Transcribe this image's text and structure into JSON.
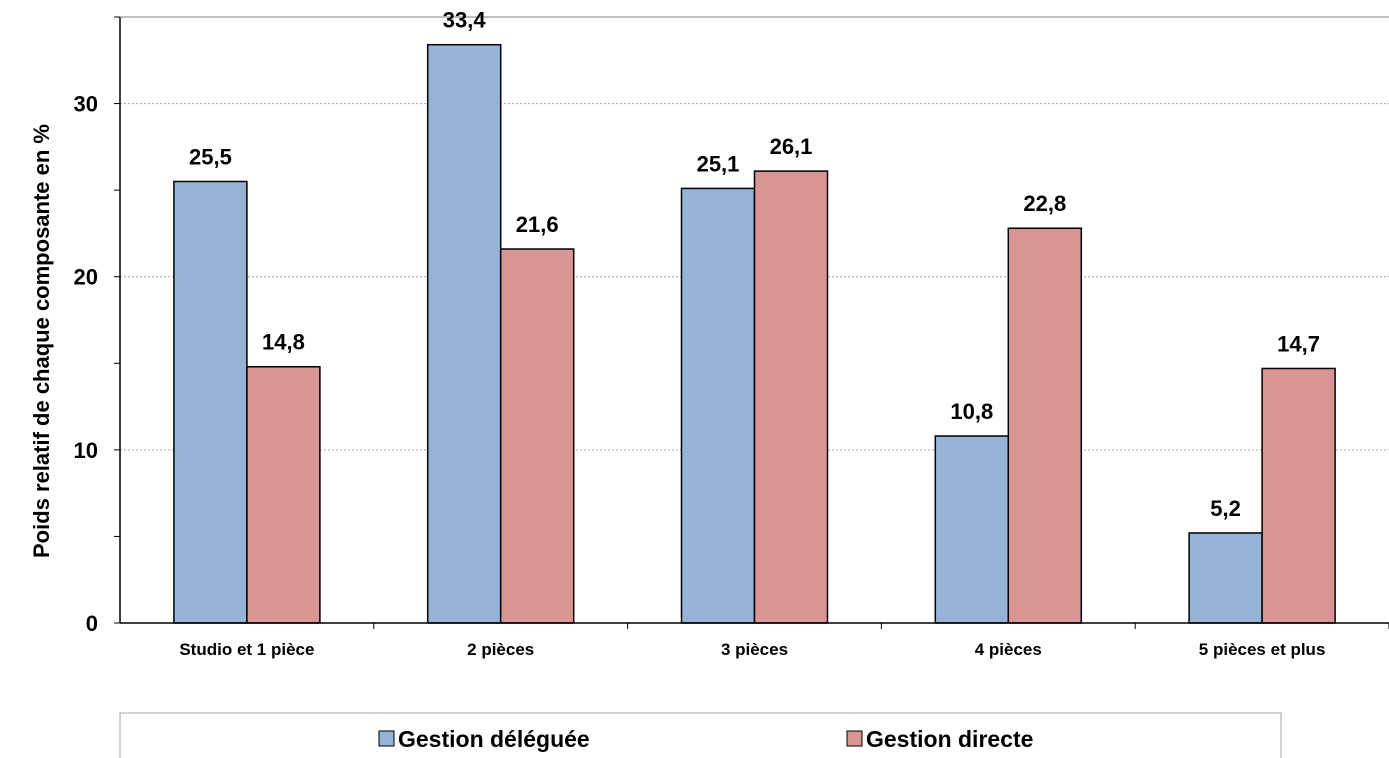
{
  "chart_data": {
    "type": "bar",
    "title": "",
    "xlabel": "",
    "ylabel": "Poids relatif de chaque composante en %",
    "ylim": [
      0,
      35
    ],
    "yticks": [
      "0",
      "10",
      "20",
      "30"
    ],
    "grid": true,
    "legend_position": "bottom",
    "categories": [
      "Studio et 1 pièce",
      "2 pièces",
      "3 pièces",
      "4 pièces",
      "5 pièces et plus"
    ],
    "series": [
      {
        "name": "Gestion déléguée",
        "color": "#95B3D7",
        "values": [
          25.5,
          33.4,
          25.1,
          10.8,
          5.2
        ],
        "labels": [
          "25,5",
          "33,4",
          "25,1",
          "10,8",
          "5,2"
        ]
      },
      {
        "name": "Gestion directe",
        "color": "#D99594",
        "values": [
          14.8,
          21.6,
          26.1,
          22.8,
          14.7
        ],
        "labels": [
          "14,8",
          "21,6",
          "26,1",
          "22,8",
          "14,7"
        ]
      }
    ]
  }
}
